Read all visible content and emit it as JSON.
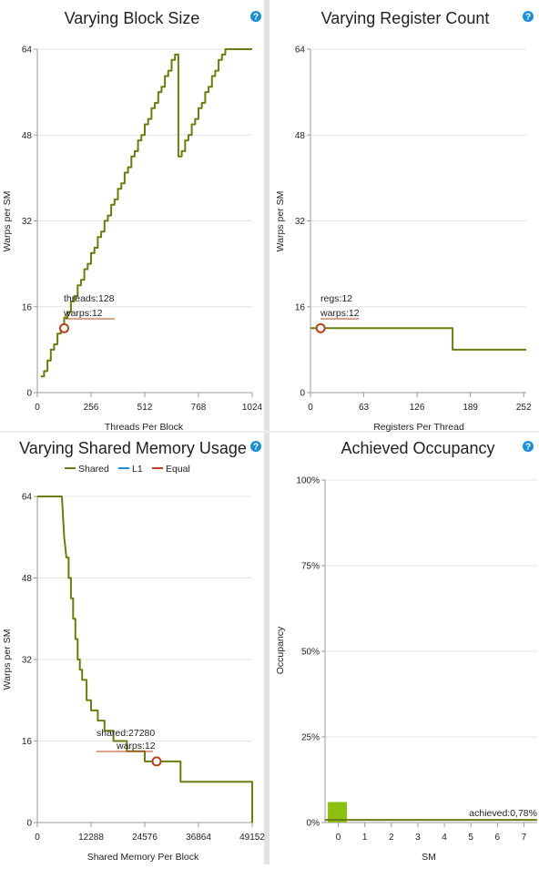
{
  "colors": {
    "line": "#6b7d10",
    "marker": "#b4451f",
    "equal": "#b4451f",
    "l1": "#1a8fd6",
    "bar": "#8cc010",
    "help": "#1a8fd6"
  },
  "help_icon": {
    "glyph": "?"
  },
  "chart_data": [
    {
      "id": "block",
      "type": "line",
      "title": "Varying Block Size",
      "xlabel": "Threads Per Block",
      "ylabel": "Warps per SM",
      "xlim": [
        0,
        1024
      ],
      "ylim": [
        0,
        64
      ],
      "xticks": [
        0,
        256,
        512,
        768,
        1024
      ],
      "yticks": [
        0,
        16,
        32,
        48,
        64
      ],
      "grid": true,
      "series": [
        {
          "x": [
            16,
            32,
            32,
            48,
            48,
            64,
            64,
            80,
            80,
            96,
            96,
            112,
            112,
            128,
            128,
            144,
            144,
            160,
            160,
            176,
            176,
            192,
            192,
            208,
            208,
            224,
            224,
            240,
            240,
            256,
            256,
            272,
            272,
            288,
            288,
            304,
            304,
            320,
            320,
            336,
            336,
            352,
            352,
            368,
            368,
            384,
            384,
            400,
            400,
            416,
            416,
            432,
            432,
            448,
            448,
            464,
            464,
            480,
            480,
            496,
            496,
            512,
            512,
            528,
            528,
            544,
            544,
            560,
            560,
            576,
            576,
            592,
            592,
            608,
            608,
            624,
            624,
            640,
            640,
            656,
            656,
            672,
            672,
            688,
            688,
            704,
            704,
            720,
            720,
            736,
            736,
            752,
            752,
            768,
            768,
            784,
            784,
            800,
            800,
            816,
            816,
            832,
            832,
            848,
            848,
            864,
            864,
            880,
            880,
            896,
            896,
            912,
            912,
            928,
            928,
            944,
            944,
            960,
            960,
            976,
            976,
            992,
            992,
            1008,
            1008,
            1024
          ],
          "y": [
            3,
            3,
            4,
            4,
            6,
            6,
            8,
            8,
            9,
            9,
            11,
            11,
            12,
            12,
            14,
            14,
            15,
            15,
            17,
            17,
            18,
            18,
            20,
            20,
            21,
            21,
            23,
            23,
            24,
            24,
            26,
            26,
            27,
            27,
            29,
            29,
            30,
            30,
            32,
            32,
            33,
            33,
            35,
            35,
            36,
            36,
            38,
            38,
            39,
            39,
            41,
            41,
            42,
            42,
            44,
            44,
            45,
            45,
            47,
            47,
            48,
            48,
            50,
            50,
            51,
            51,
            53,
            53,
            54,
            54,
            56,
            56,
            57,
            57,
            59,
            59,
            60,
            60,
            62,
            62,
            63,
            63,
            44,
            44,
            45,
            45,
            47,
            47,
            48,
            48,
            50,
            50,
            51,
            51,
            53,
            53,
            54,
            54,
            56,
            56,
            57,
            57,
            59,
            59,
            60,
            60,
            62,
            62,
            63,
            63,
            64,
            64,
            64,
            64,
            64,
            64,
            64,
            64,
            64,
            64,
            64,
            64,
            64,
            64,
            64,
            64
          ]
        }
      ],
      "marker": {
        "x": 128,
        "y": 12
      },
      "annotations": [
        "threads:128",
        "warps:12"
      ]
    },
    {
      "id": "regs",
      "type": "line",
      "title": "Varying Register Count",
      "xlabel": "Registers Per Thread",
      "ylabel": "Warps per SM",
      "xlim": [
        0,
        255
      ],
      "ylim": [
        0,
        64
      ],
      "xticks": [
        0,
        63,
        126,
        189,
        252
      ],
      "yticks": [
        0,
        16,
        32,
        48,
        64
      ],
      "grid": true,
      "series": [
        {
          "x": [
            0,
            168,
            168,
            255
          ],
          "y": [
            12,
            12,
            8,
            8
          ]
        }
      ],
      "marker": {
        "x": 12,
        "y": 12
      },
      "annotations": [
        "regs:12",
        "warps:12"
      ]
    },
    {
      "id": "shared",
      "type": "line",
      "title": "Varying Shared Memory Usage",
      "xlabel": "Shared Memory Per Block",
      "ylabel": "Warps per SM",
      "xlim": [
        0,
        49152
      ],
      "ylim": [
        0,
        64
      ],
      "xticks": [
        0,
        12288,
        24576,
        36864,
        49152
      ],
      "yticks": [
        0,
        16,
        32,
        48,
        64
      ],
      "grid": true,
      "legend": {
        "position": "top",
        "items": [
          {
            "label": "Shared",
            "color_key": "line"
          },
          {
            "label": "L1",
            "color_key": "l1"
          },
          {
            "label": "Equal",
            "color_key": "equal"
          }
        ]
      },
      "series": [
        {
          "name": "Shared",
          "x": [
            0,
            5632,
            6144,
            6656,
            7168,
            7168,
            7680,
            7680,
            8192,
            8192,
            8704,
            8704,
            9216,
            9216,
            9728,
            9728,
            10240,
            10240,
            11264,
            11264,
            12288,
            12288,
            13824,
            13824,
            15360,
            15360,
            17408,
            17408,
            20480,
            20480,
            24576,
            24576,
            32768,
            32768,
            49152,
            49152
          ],
          "y": [
            64,
            64,
            56,
            52,
            52,
            48,
            48,
            44,
            44,
            40,
            40,
            36,
            36,
            32,
            32,
            30,
            30,
            28,
            28,
            24,
            24,
            22,
            22,
            20,
            20,
            18,
            18,
            16,
            16,
            14,
            14,
            12,
            12,
            8,
            8,
            0
          ]
        }
      ],
      "marker": {
        "x": 27280,
        "y": 12
      },
      "annotations": [
        "shared:27280",
        "warps:12"
      ]
    },
    {
      "id": "occupancy",
      "type": "bar",
      "title": "Achieved Occupancy",
      "xlabel": "SM",
      "ylabel": "Occupancy",
      "xlim": [
        -0.5,
        7.5
      ],
      "ylim": [
        0,
        100
      ],
      "xticks": [
        0,
        1,
        2,
        3,
        4,
        5,
        6,
        7
      ],
      "yticks": [
        "0%",
        "25%",
        "50%",
        "75%",
        "100%"
      ],
      "grid": true,
      "categories": [
        0,
        1,
        2,
        3,
        4,
        5,
        6,
        7
      ],
      "values": [
        6,
        0,
        0,
        0,
        0,
        0,
        0,
        0
      ],
      "achieved_line": 0.78,
      "annotation": "achieved:0,78%"
    }
  ]
}
